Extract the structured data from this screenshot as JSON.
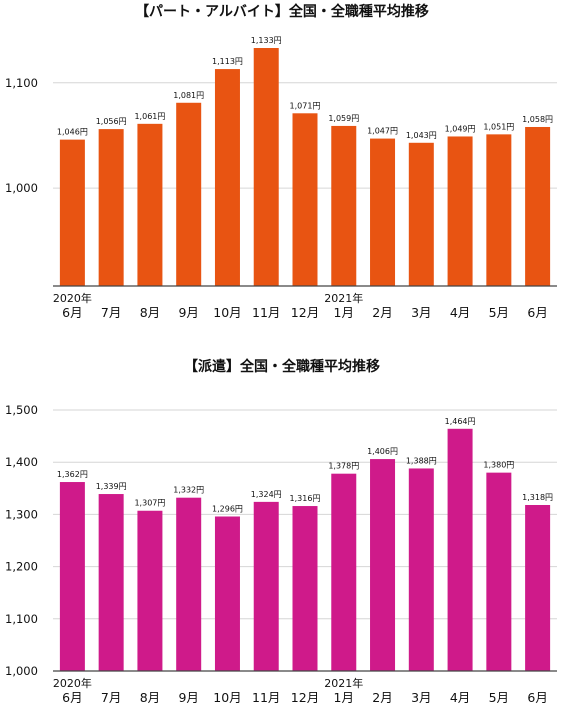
{
  "chart_data": [
    {
      "type": "bar",
      "title": "【パート・アルバイト】全国・全職種平均推移",
      "color": "#e85412",
      "categories": [
        "6月",
        "7月",
        "8月",
        "9月",
        "10月",
        "11月",
        "12月",
        "1月",
        "2月",
        "3月",
        "4月",
        "5月",
        "6月"
      ],
      "year_labels": [
        {
          "index": 0,
          "label": "2020年"
        },
        {
          "index": 7,
          "label": "2021年"
        }
      ],
      "values": [
        1046,
        1056,
        1061,
        1081,
        1113,
        1133,
        1071,
        1059,
        1047,
        1043,
        1049,
        1051,
        1058
      ],
      "data_labels": [
        "1,046円",
        "1,056円",
        "1,061円",
        "1,081円",
        "1,113円",
        "1,133円",
        "1,071円",
        "1,059円",
        "1,047円",
        "1,043円",
        "1,049円",
        "1,051円",
        "1,058円"
      ],
      "yticks": [
        1000,
        1100
      ],
      "ytick_labels": [
        "1,000",
        "1,100"
      ],
      "ylim": [
        907,
        1152
      ],
      "grid": true
    },
    {
      "type": "bar",
      "title": "【派遣】全国・全職種平均推移",
      "color": "#cf1a8a",
      "categories": [
        "6月",
        "7月",
        "8月",
        "9月",
        "10月",
        "11月",
        "12月",
        "1月",
        "2月",
        "3月",
        "4月",
        "5月",
        "6月"
      ],
      "year_labels": [
        {
          "index": 0,
          "label": "2020年"
        },
        {
          "index": 7,
          "label": "2021年"
        }
      ],
      "values": [
        1362,
        1339,
        1307,
        1332,
        1296,
        1324,
        1316,
        1378,
        1406,
        1388,
        1464,
        1380,
        1318
      ],
      "data_labels": [
        "1,362円",
        "1,339円",
        "1,307円",
        "1,332円",
        "1,296円",
        "1,324円",
        "1,316円",
        "1,378円",
        "1,406円",
        "1,388円",
        "1,464円",
        "1,380円",
        "1,318円"
      ],
      "yticks": [
        1000,
        1100,
        1200,
        1300,
        1400,
        1500
      ],
      "ytick_labels": [
        "1,000",
        "1,100",
        "1,200",
        "1,300",
        "1,400",
        "1,500"
      ],
      "ylim": [
        1000,
        1500
      ],
      "grid": true
    }
  ]
}
